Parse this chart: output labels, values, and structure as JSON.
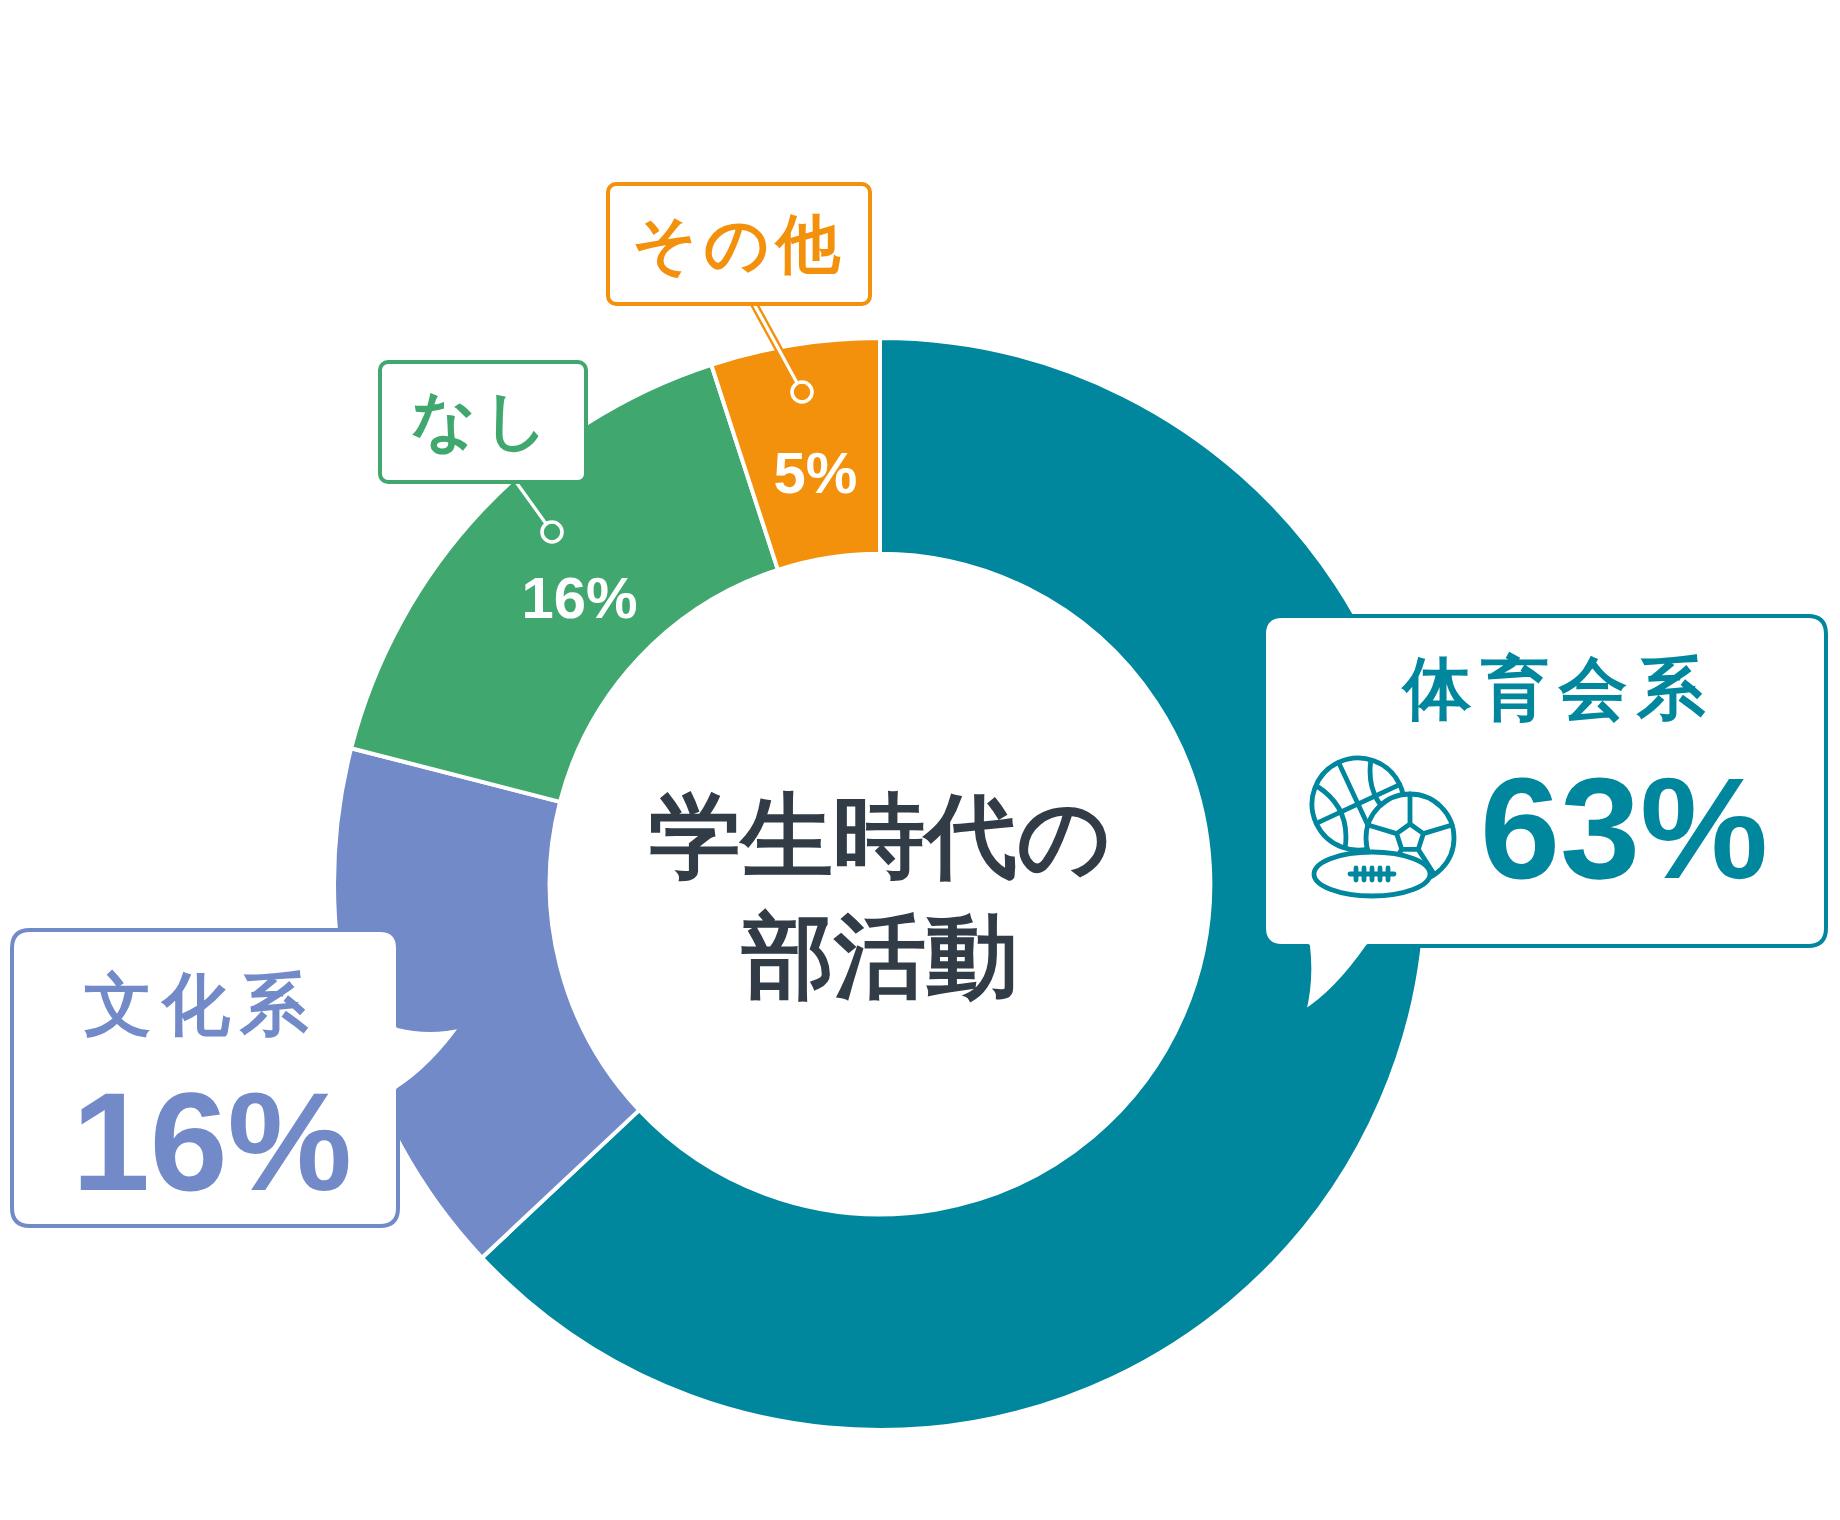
{
  "chart_data": {
    "type": "donut",
    "title": "学生時代の部活動",
    "categories": [
      "体育会系",
      "文化系",
      "なし",
      "その他"
    ],
    "values": [
      63,
      16,
      16,
      5
    ],
    "colors": [
      "#00879e",
      "#728ac8",
      "#40a76f",
      "#f3900c"
    ],
    "value_labels": [
      "63%",
      "16%",
      "16%",
      "5%"
    ]
  }
}
